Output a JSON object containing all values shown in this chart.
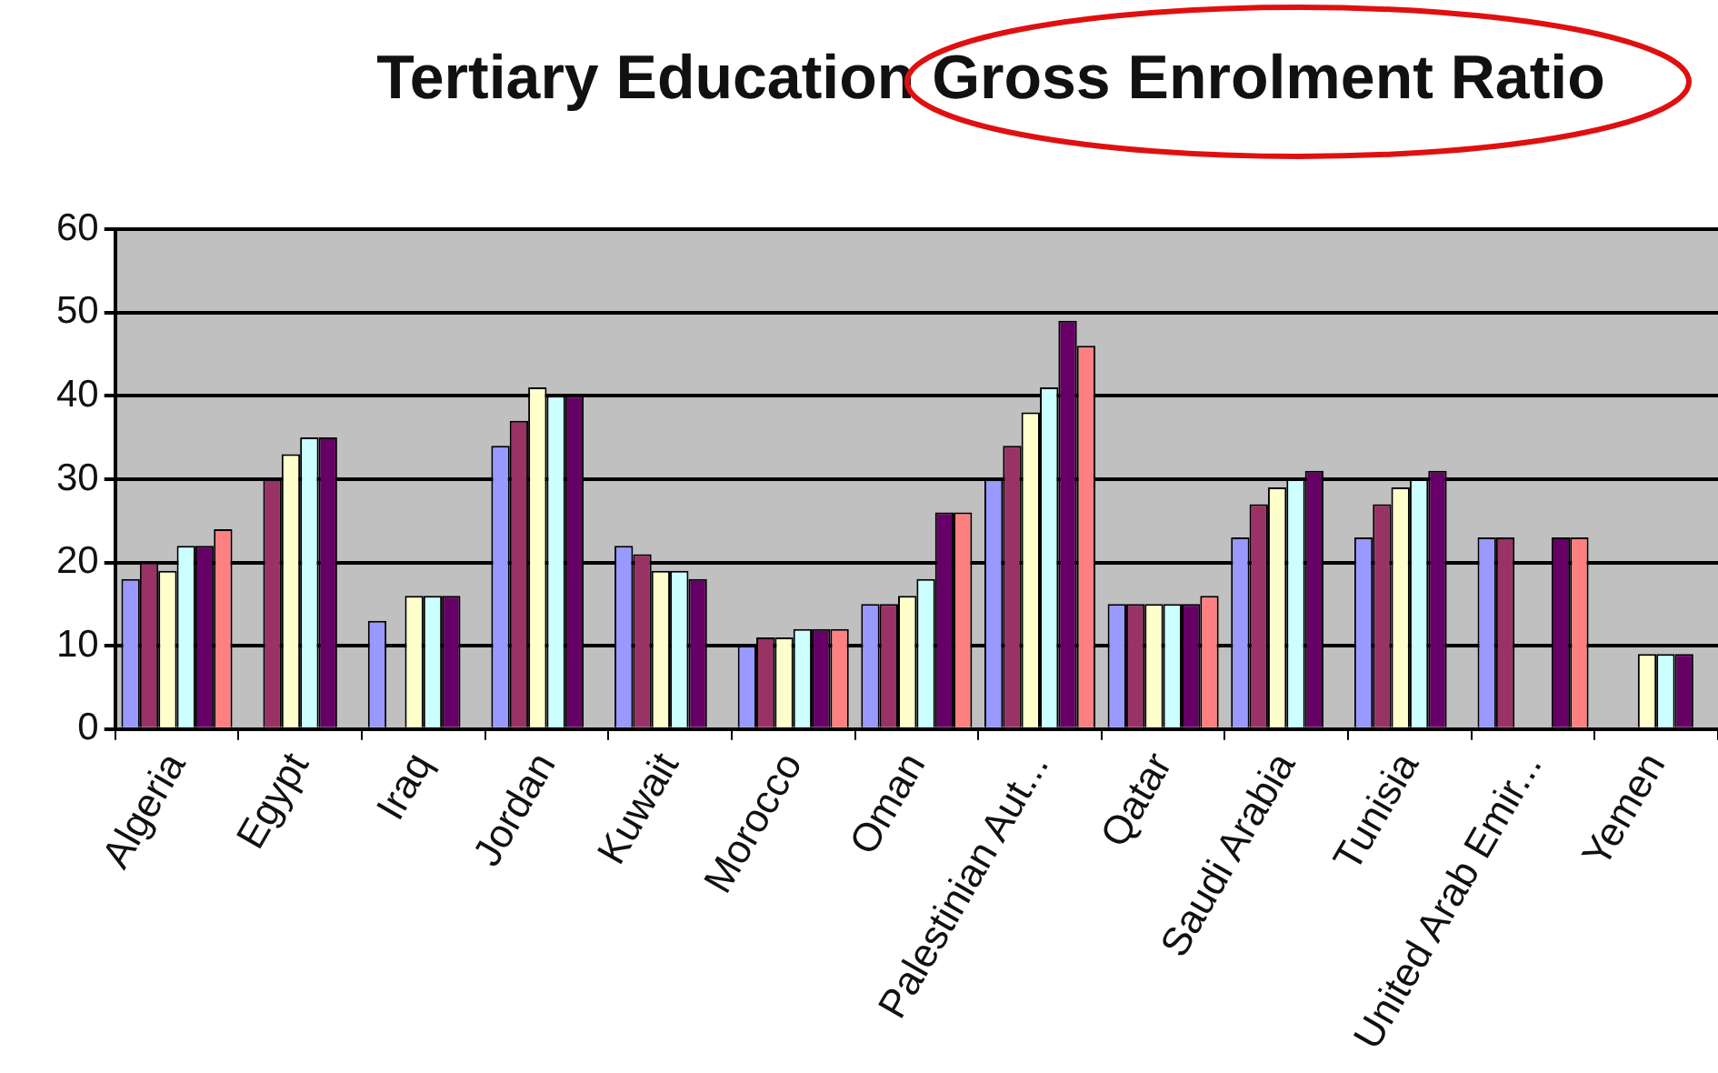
{
  "chart_data": {
    "type": "bar",
    "title": "Tertiary Education Gross Enrolment Ratio",
    "categories": [
      "Algeria",
      "Egypt",
      "Iraq",
      "Jordan",
      "Kuwait",
      "Morocco",
      "Oman",
      "Palestinian Aut...",
      "Qatar",
      "Saudi Arabia",
      "Tunisia",
      "United Arab Emir...",
      "Yemen"
    ],
    "series": [
      {
        "color": "#9999ff",
        "values": [
          18,
          null,
          13,
          34,
          22,
          10,
          15,
          30,
          15,
          23,
          23,
          23,
          null
        ]
      },
      {
        "color": "#993366",
        "values": [
          20,
          30,
          null,
          37,
          21,
          11,
          15,
          34,
          15,
          27,
          27,
          23,
          null
        ]
      },
      {
        "color": "#ffffcc",
        "values": [
          19,
          33,
          16,
          41,
          19,
          11,
          16,
          38,
          15,
          29,
          29,
          null,
          9
        ]
      },
      {
        "color": "#ccffff",
        "values": [
          22,
          35,
          16,
          40,
          19,
          12,
          18,
          41,
          15,
          30,
          30,
          null,
          9
        ]
      },
      {
        "color": "#660066",
        "values": [
          22,
          35,
          16,
          40,
          18,
          12,
          26,
          49,
          15,
          31,
          31,
          23,
          9
        ]
      },
      {
        "color": "#ff8080",
        "values": [
          24,
          null,
          null,
          null,
          null,
          12,
          26,
          46,
          16,
          null,
          null,
          23,
          null
        ]
      }
    ],
    "ylim": [
      0,
      60
    ],
    "yticks": [
      0,
      10,
      20,
      30,
      40,
      50,
      60
    ],
    "grid": "y",
    "legend": false
  }
}
